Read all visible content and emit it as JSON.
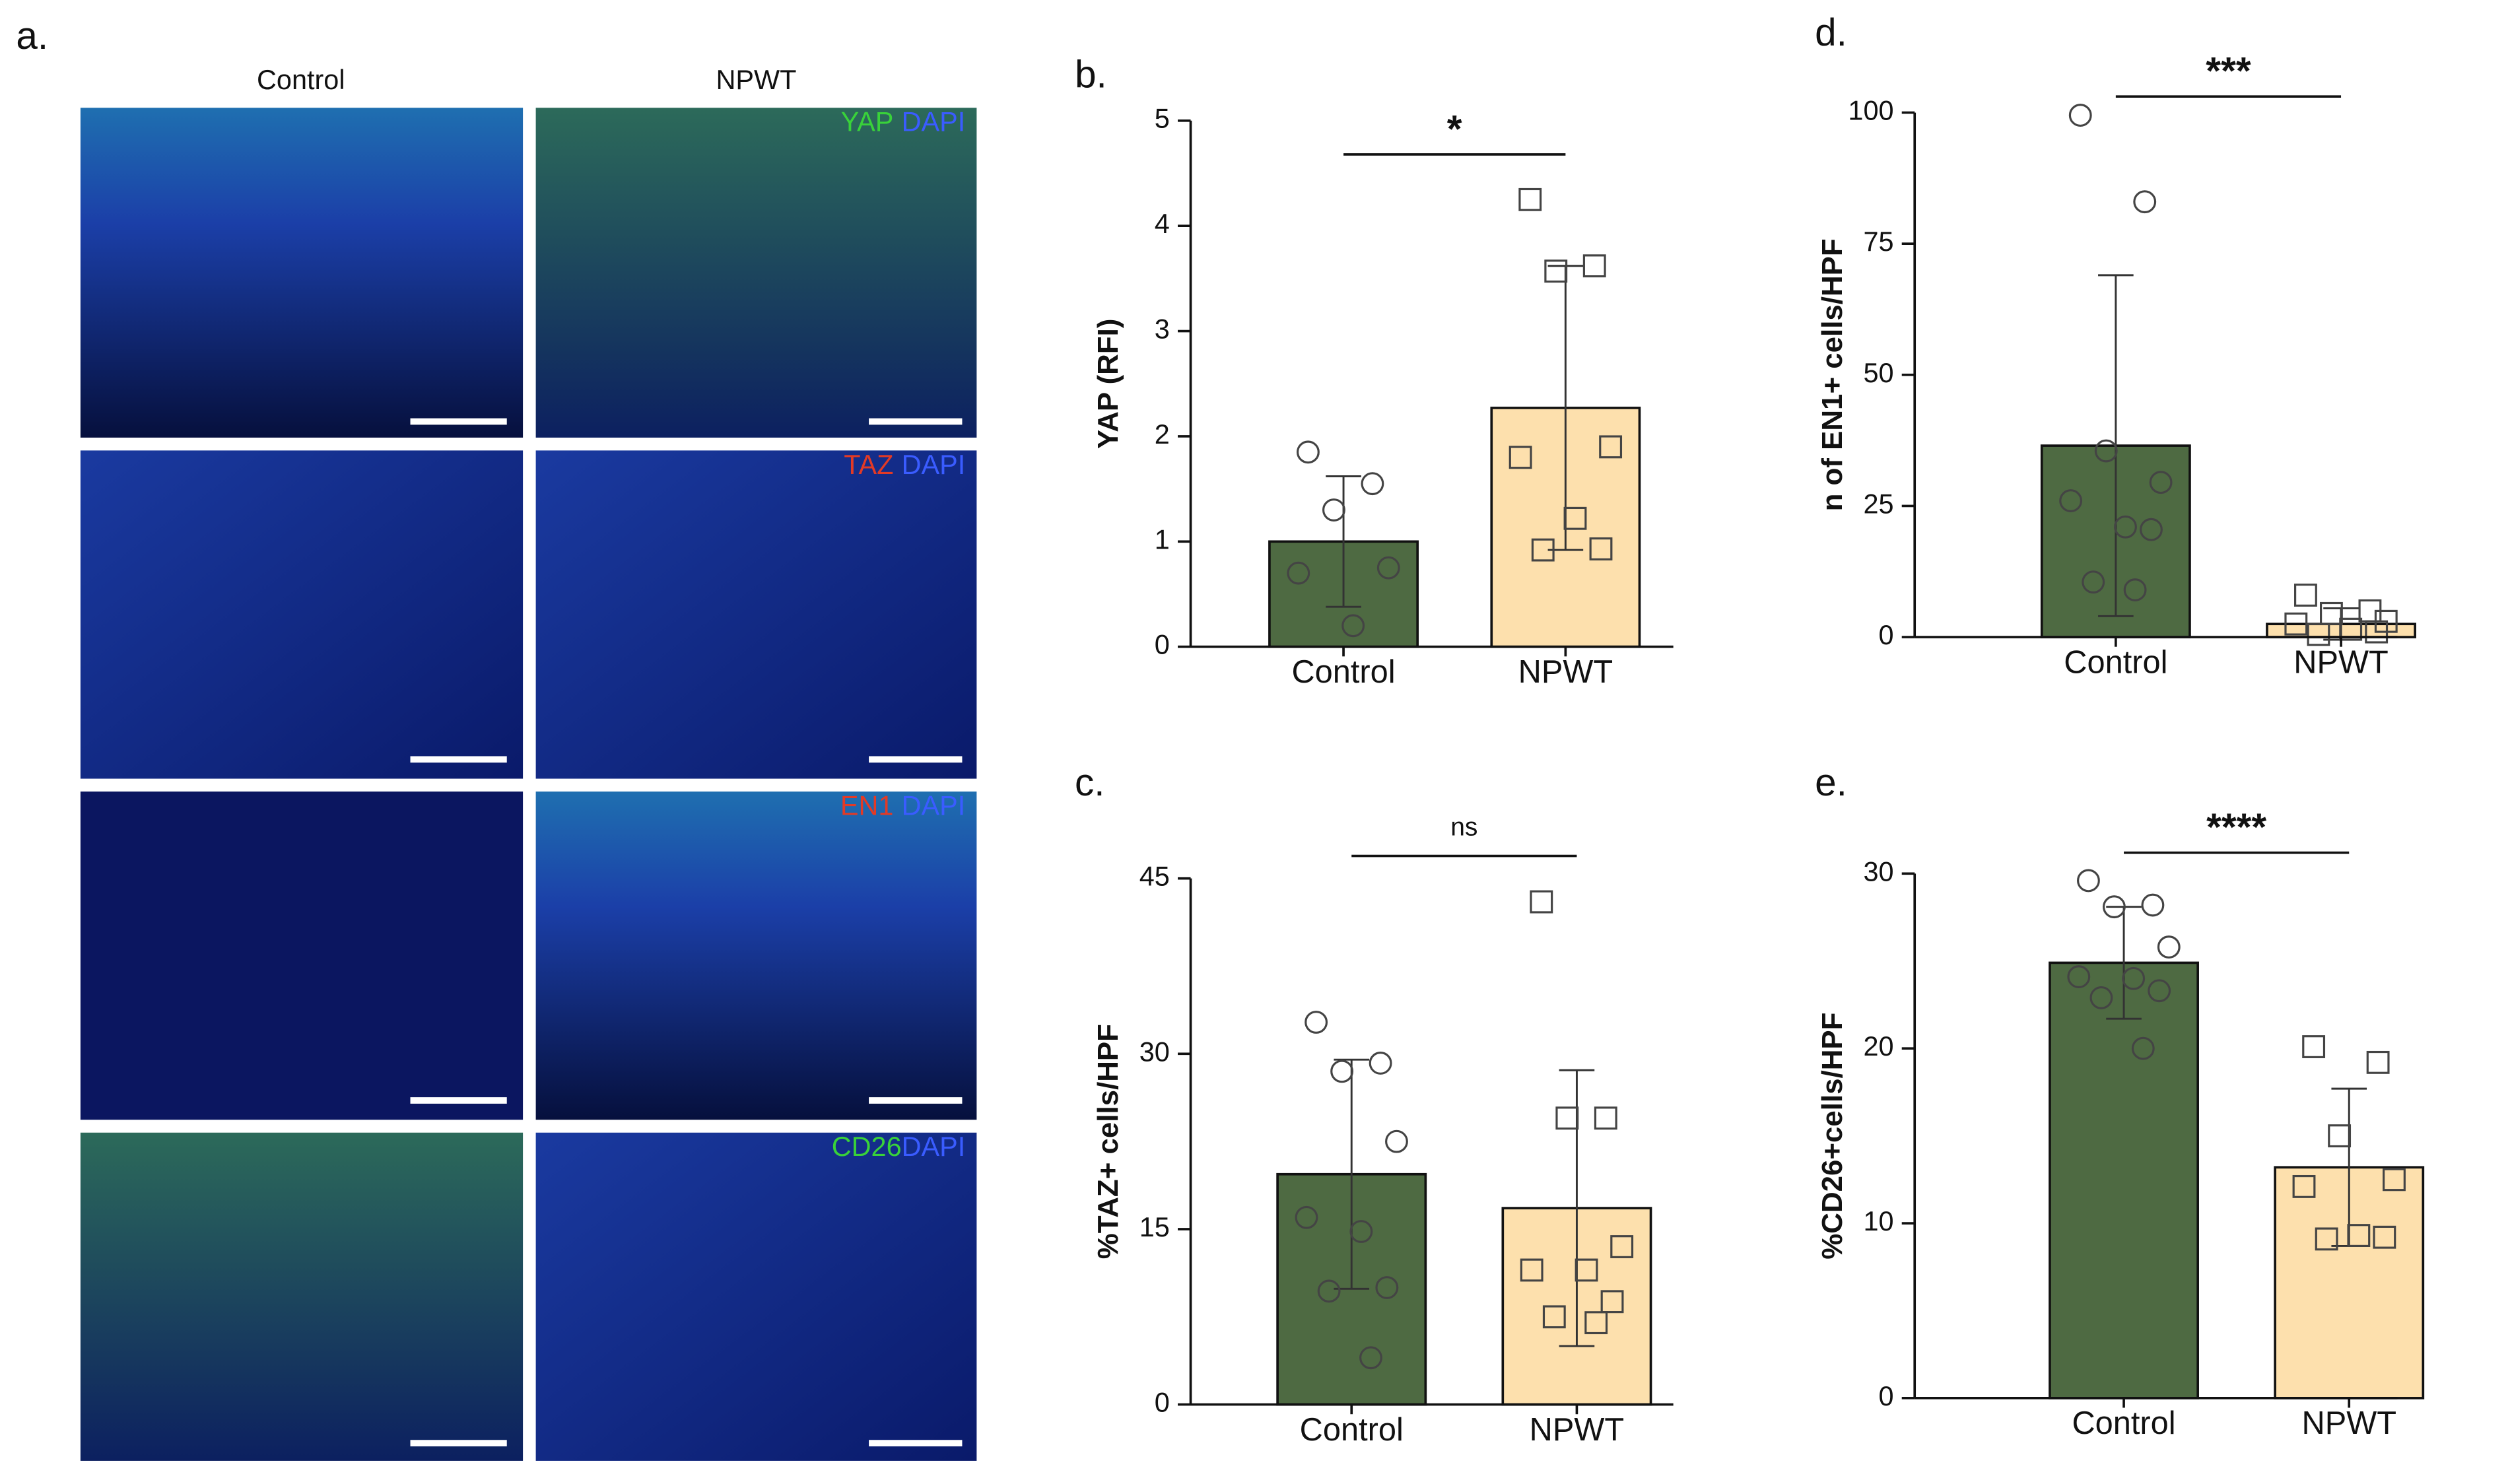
{
  "panel_a": {
    "label": "a.",
    "columns": [
      "Control",
      "NPWT"
    ],
    "rows": [
      {
        "marker": "YAP",
        "marker_color": "#39d23a",
        "counterstain": "DAPI",
        "counterstain_color": "#3a5cff"
      },
      {
        "marker": "TAZ",
        "marker_color": "#e23a26",
        "counterstain": "DAPI",
        "counterstain_color": "#3a5cff"
      },
      {
        "marker": "EN1",
        "marker_color": "#e23a26",
        "counterstain": "DAPI",
        "counterstain_color": "#3a5cff"
      },
      {
        "marker": "CD26",
        "marker_color": "#39d23a",
        "counterstain": "DAPI",
        "counterstain_color": "#3a5cff"
      }
    ]
  },
  "chart_data": [
    {
      "panel": "b.",
      "type": "bar",
      "ylabel": "YAP (RFI)",
      "categories": [
        "Control",
        "NPWT"
      ],
      "values": [
        1.0,
        2.27
      ],
      "errors": [
        0.62,
        1.35
      ],
      "points": [
        [
          1.85,
          1.55,
          1.3,
          0.75,
          0.7,
          0.2
        ],
        [
          4.25,
          3.62,
          3.57,
          1.9,
          1.8,
          1.22,
          0.93,
          0.92
        ]
      ],
      "colors": [
        "#4e6a42",
        "#fde0ad"
      ],
      "markers": [
        "circle",
        "square"
      ],
      "ylim": [
        0,
        5
      ],
      "yticks": [
        0,
        1,
        2,
        3,
        4,
        5
      ],
      "significance": "*"
    },
    {
      "panel": "c.",
      "type": "bar",
      "ylabel": "%TAZ+ cells/HPF",
      "categories": [
        "Control",
        "NPWT"
      ],
      "values": [
        19.7,
        16.8
      ],
      "errors": [
        9.8,
        11.8
      ],
      "points": [
        [
          32.7,
          29.2,
          28.5,
          22.5,
          16,
          14.8,
          10,
          9.7,
          4
        ],
        [
          43,
          24.5,
          24.5,
          13.5,
          11.5,
          11.5,
          8.8,
          7.5,
          7
        ]
      ],
      "colors": [
        "#4e6a42",
        "#fde0ad"
      ],
      "markers": [
        "circle",
        "square"
      ],
      "ylim": [
        0,
        45
      ],
      "yticks": [
        0,
        15,
        30,
        45
      ],
      "significance": "ns"
    },
    {
      "panel": "d.",
      "type": "bar",
      "ylabel": "n of EN1+ cells/HPF",
      "categories": [
        "Control",
        "NPWT"
      ],
      "values": [
        36.5,
        2.5
      ],
      "errors": [
        32.5,
        3
      ],
      "points": [
        [
          99.5,
          83,
          35.5,
          29.5,
          26,
          21,
          20.5,
          10.5,
          9
        ],
        [
          8,
          5,
          4.5,
          3,
          2.5,
          1.5,
          1,
          0.5
        ]
      ],
      "colors": [
        "#4e6a42",
        "#fde0ad"
      ],
      "markers": [
        "circle",
        "square"
      ],
      "ylim": [
        0,
        100
      ],
      "yticks": [
        0,
        25,
        50,
        75,
        100
      ],
      "significance": "***"
    },
    {
      "panel": "e.",
      "type": "bar",
      "ylabel": "%CD26+cells/HPF",
      "categories": [
        "Control",
        "NPWT"
      ],
      "values": [
        24.9,
        13.2
      ],
      "errors": [
        3.2,
        4.5
      ],
      "points": [
        [
          29.6,
          28.2,
          28.1,
          25.8,
          24.1,
          24.0,
          23.3,
          22.9,
          20
        ],
        [
          20.1,
          19.2,
          15,
          12.5,
          12.1,
          9.3,
          9.2,
          9.1
        ]
      ],
      "colors": [
        "#4e6a42",
        "#fde0ad"
      ],
      "markers": [
        "circle",
        "square"
      ],
      "ylim": [
        0,
        30
      ],
      "yticks": [
        0,
        10,
        20,
        30
      ],
      "significance": "****"
    }
  ]
}
